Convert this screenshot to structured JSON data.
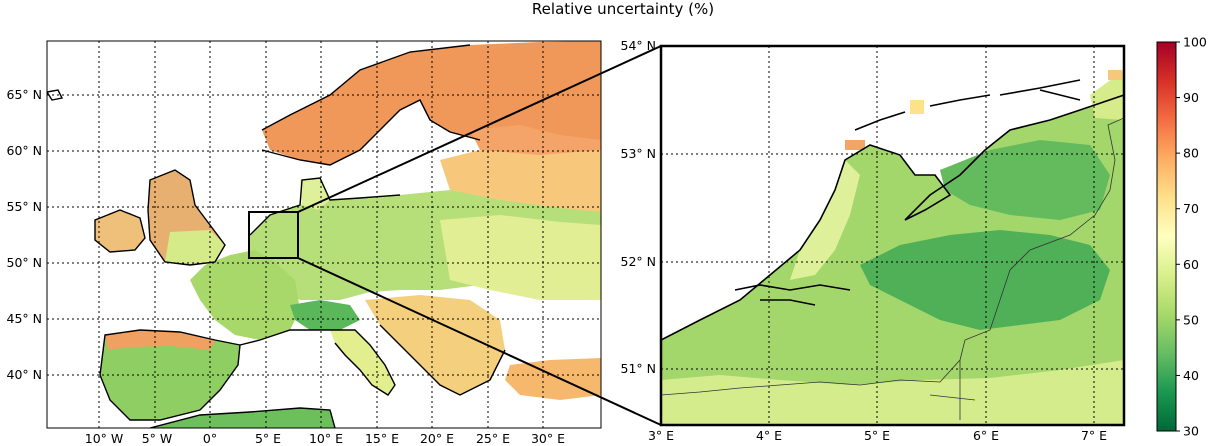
{
  "figure": {
    "title": "Relative uncertainty (%)"
  },
  "left_map": {
    "lon_ticks": [
      "10° W",
      "5° W",
      "0°",
      "5° E",
      "10° E",
      "15° E",
      "20° E",
      "25° E",
      "30° E"
    ],
    "lat_ticks": [
      "40° N",
      "45° N",
      "50° N",
      "55° N",
      "60° N",
      "65° N"
    ]
  },
  "right_map": {
    "lon_ticks": [
      "3° E",
      "4° E",
      "5° E",
      "6° E",
      "7° E"
    ],
    "lat_ticks": [
      "51° N",
      "52° N",
      "53° N",
      "54° N"
    ]
  },
  "colorbar": {
    "ticks": [
      "30",
      "40",
      "50",
      "60",
      "70",
      "80",
      "90",
      "100"
    ],
    "min": 30,
    "max": 100,
    "colormap": [
      "#006837",
      "#1a9850",
      "#66bd63",
      "#a6d96a",
      "#d9ef8b",
      "#ffffbf",
      "#fee08b",
      "#fdae61",
      "#f46d43",
      "#d73027",
      "#a50026"
    ]
  }
}
